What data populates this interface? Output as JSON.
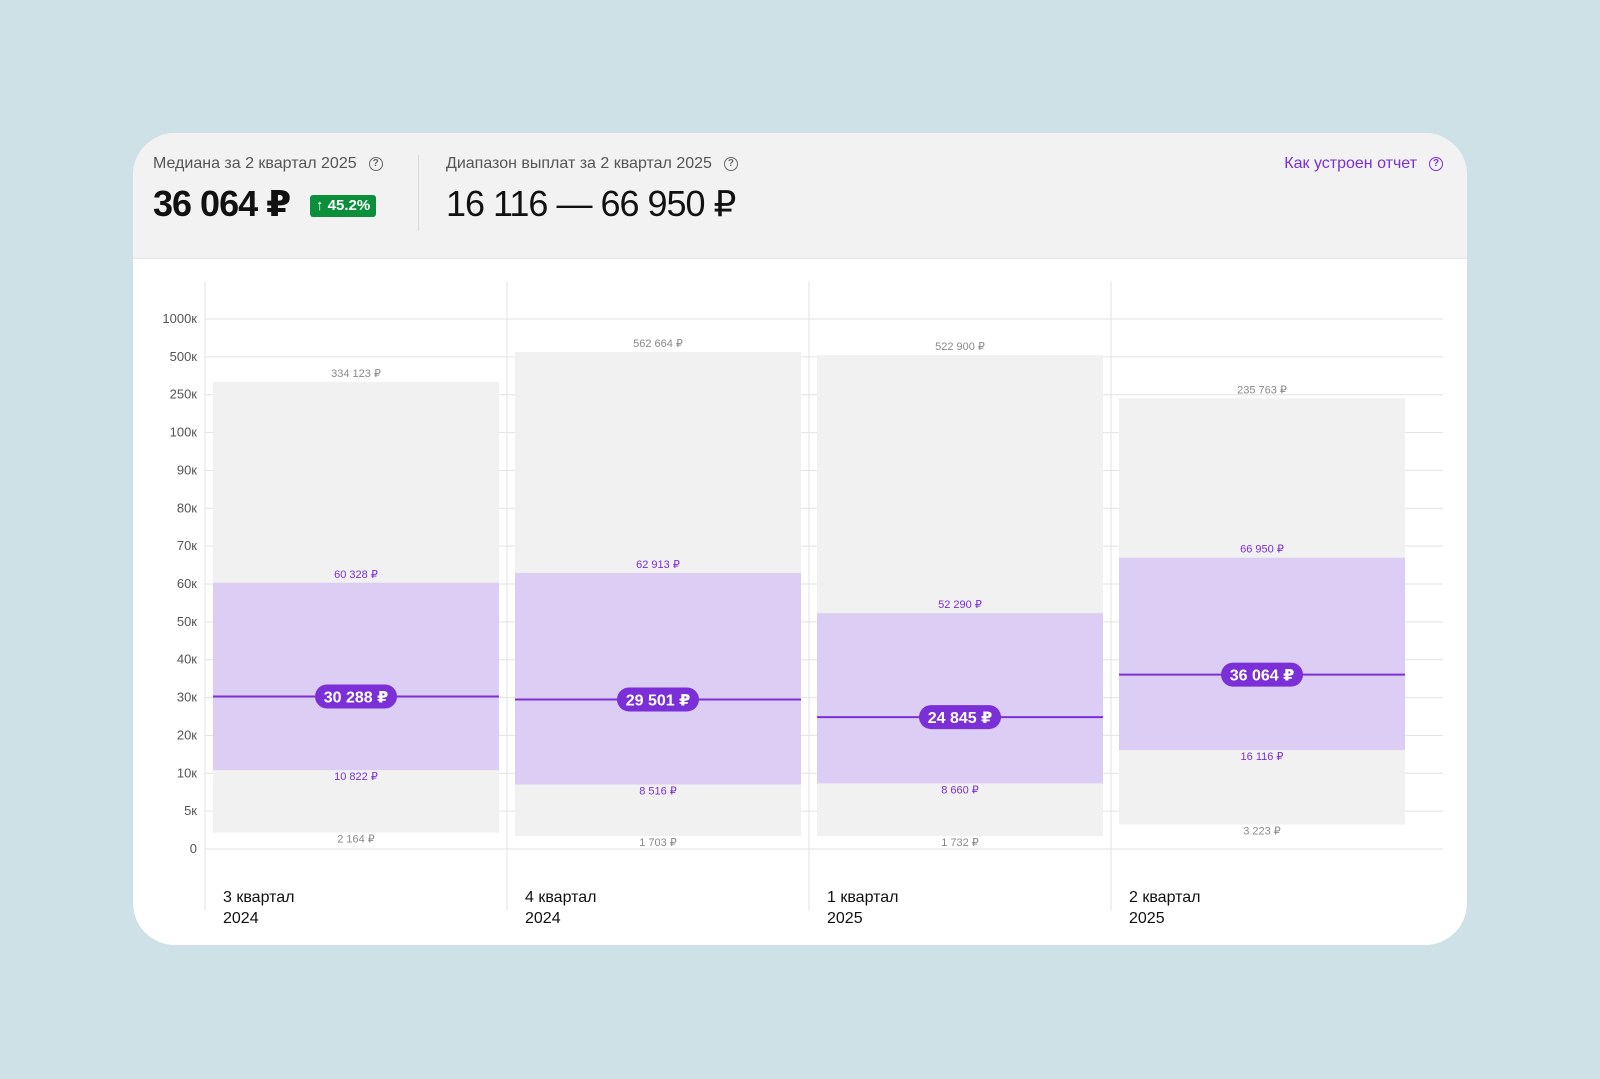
{
  "header": {
    "median_label": "Медиана за 2 квартал 2025",
    "median_value": "36 064 ₽",
    "median_change": "↑ 45.2%",
    "range_label": "Диапазон выплат за 2 квартал 2025",
    "range_value": "16 116 — 66 950 ₽",
    "report_link": "Как устроен отчет"
  },
  "colors": {
    "accent": "#7b2fd6",
    "range_fill": "#dccdf4",
    "full_range_fill": "#f1f1f1",
    "badge_green": "#0b8f3a",
    "background": "#cde1e7"
  },
  "icons": {
    "help": "question-circle-icon",
    "change": "arrow-up-icon"
  },
  "chart_data": {
    "type": "bar",
    "y_ticks": [
      "0",
      "5к",
      "10к",
      "20к",
      "30к",
      "40к",
      "50к",
      "60к",
      "70к",
      "80к",
      "90к",
      "100к",
      "250к",
      "500к",
      "1000к"
    ],
    "y_tick_values": [
      0,
      5000,
      10000,
      20000,
      30000,
      40000,
      50000,
      60000,
      70000,
      80000,
      90000,
      100000,
      250000,
      500000,
      1000000
    ],
    "categories": [
      {
        "line1": "3 квартал",
        "line2": "2024"
      },
      {
        "line1": "4 квартал",
        "line2": "2024"
      },
      {
        "line1": "1 квартал",
        "line2": "2025"
      },
      {
        "line1": "2 квартал",
        "line2": "2025"
      }
    ],
    "series": [
      {
        "min": 2164,
        "p25": 10822,
        "median": 30288,
        "p75": 60328,
        "max": 334123,
        "min_label": "2 164 ₽",
        "p25_label": "10 822 ₽",
        "median_label": "30 288 ₽",
        "p75_label": "60 328 ₽",
        "max_label": "334 123 ₽"
      },
      {
        "min": 1703,
        "p25": 8516,
        "median": 29501,
        "p75": 62913,
        "max": 562664,
        "min_label": "1 703 ₽",
        "p25_label": "8 516 ₽",
        "median_label": "29 501 ₽",
        "p75_label": "62 913 ₽",
        "max_label": "562 664 ₽"
      },
      {
        "min": 1732,
        "p25": 8660,
        "median": 24845,
        "p75": 52290,
        "max": 522900,
        "min_label": "1 732 ₽",
        "p25_label": "8 660 ₽",
        "median_label": "24 845 ₽",
        "p75_label": "52 290 ₽",
        "max_label": "522 900 ₽"
      },
      {
        "min": 3223,
        "p25": 16116,
        "median": 36064,
        "p75": 66950,
        "max": 235763,
        "min_label": "3 223 ₽",
        "p25_label": "16 116 ₽",
        "median_label": "36 064 ₽",
        "p75_label": "66 950 ₽",
        "max_label": "235 763 ₽"
      }
    ]
  }
}
